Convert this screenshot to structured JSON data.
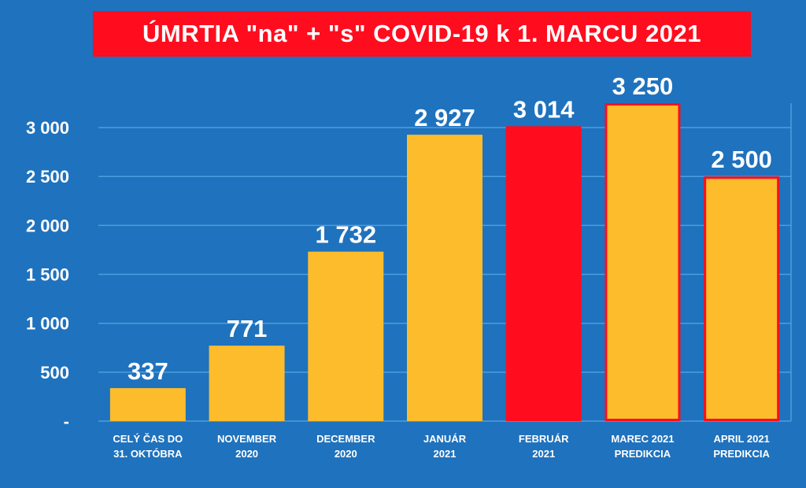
{
  "chart_data": {
    "type": "bar",
    "title": "ÚMRTIA \"na\" + \"s\" COVID-19 k 1. MARCU 2021",
    "categories": [
      [
        "CELÝ ČAS DO",
        "31. OKTÓBRA"
      ],
      [
        "NOVEMBER",
        "2020"
      ],
      [
        "DECEMBER",
        "2020"
      ],
      [
        "JANUÁR",
        "2021"
      ],
      [
        "FEBRUÁR",
        "2021"
      ],
      [
        "MAREC 2021",
        "PREDIKCIA"
      ],
      [
        "APRIL 2021",
        "PREDIKCIA"
      ]
    ],
    "values": [
      337,
      771,
      1732,
      2927,
      3014,
      3250,
      2500
    ],
    "value_labels": [
      "337",
      "771",
      "1 732",
      "2 927",
      "3 014",
      "3 250",
      "2 500"
    ],
    "ylim": [
      0,
      3250
    ],
    "yticks": [
      0,
      500,
      1000,
      1500,
      2000,
      2500,
      3000
    ],
    "ytick_labels": [
      "-",
      "500",
      "1 000",
      "1 500",
      "2 000",
      "2 500",
      "3 000"
    ],
    "grid": true,
    "xlabel": "",
    "ylabel": "",
    "bar_styles": [
      "normal",
      "normal",
      "normal",
      "normal",
      "highlight",
      "prediction",
      "prediction"
    ],
    "colors": {
      "background": "#1f72bd",
      "bar": "#fcbc2c",
      "highlight": "#ff0d1e",
      "outline": "#ff0d1e",
      "grid": "#4d9ede",
      "text": "#ffffff"
    }
  }
}
